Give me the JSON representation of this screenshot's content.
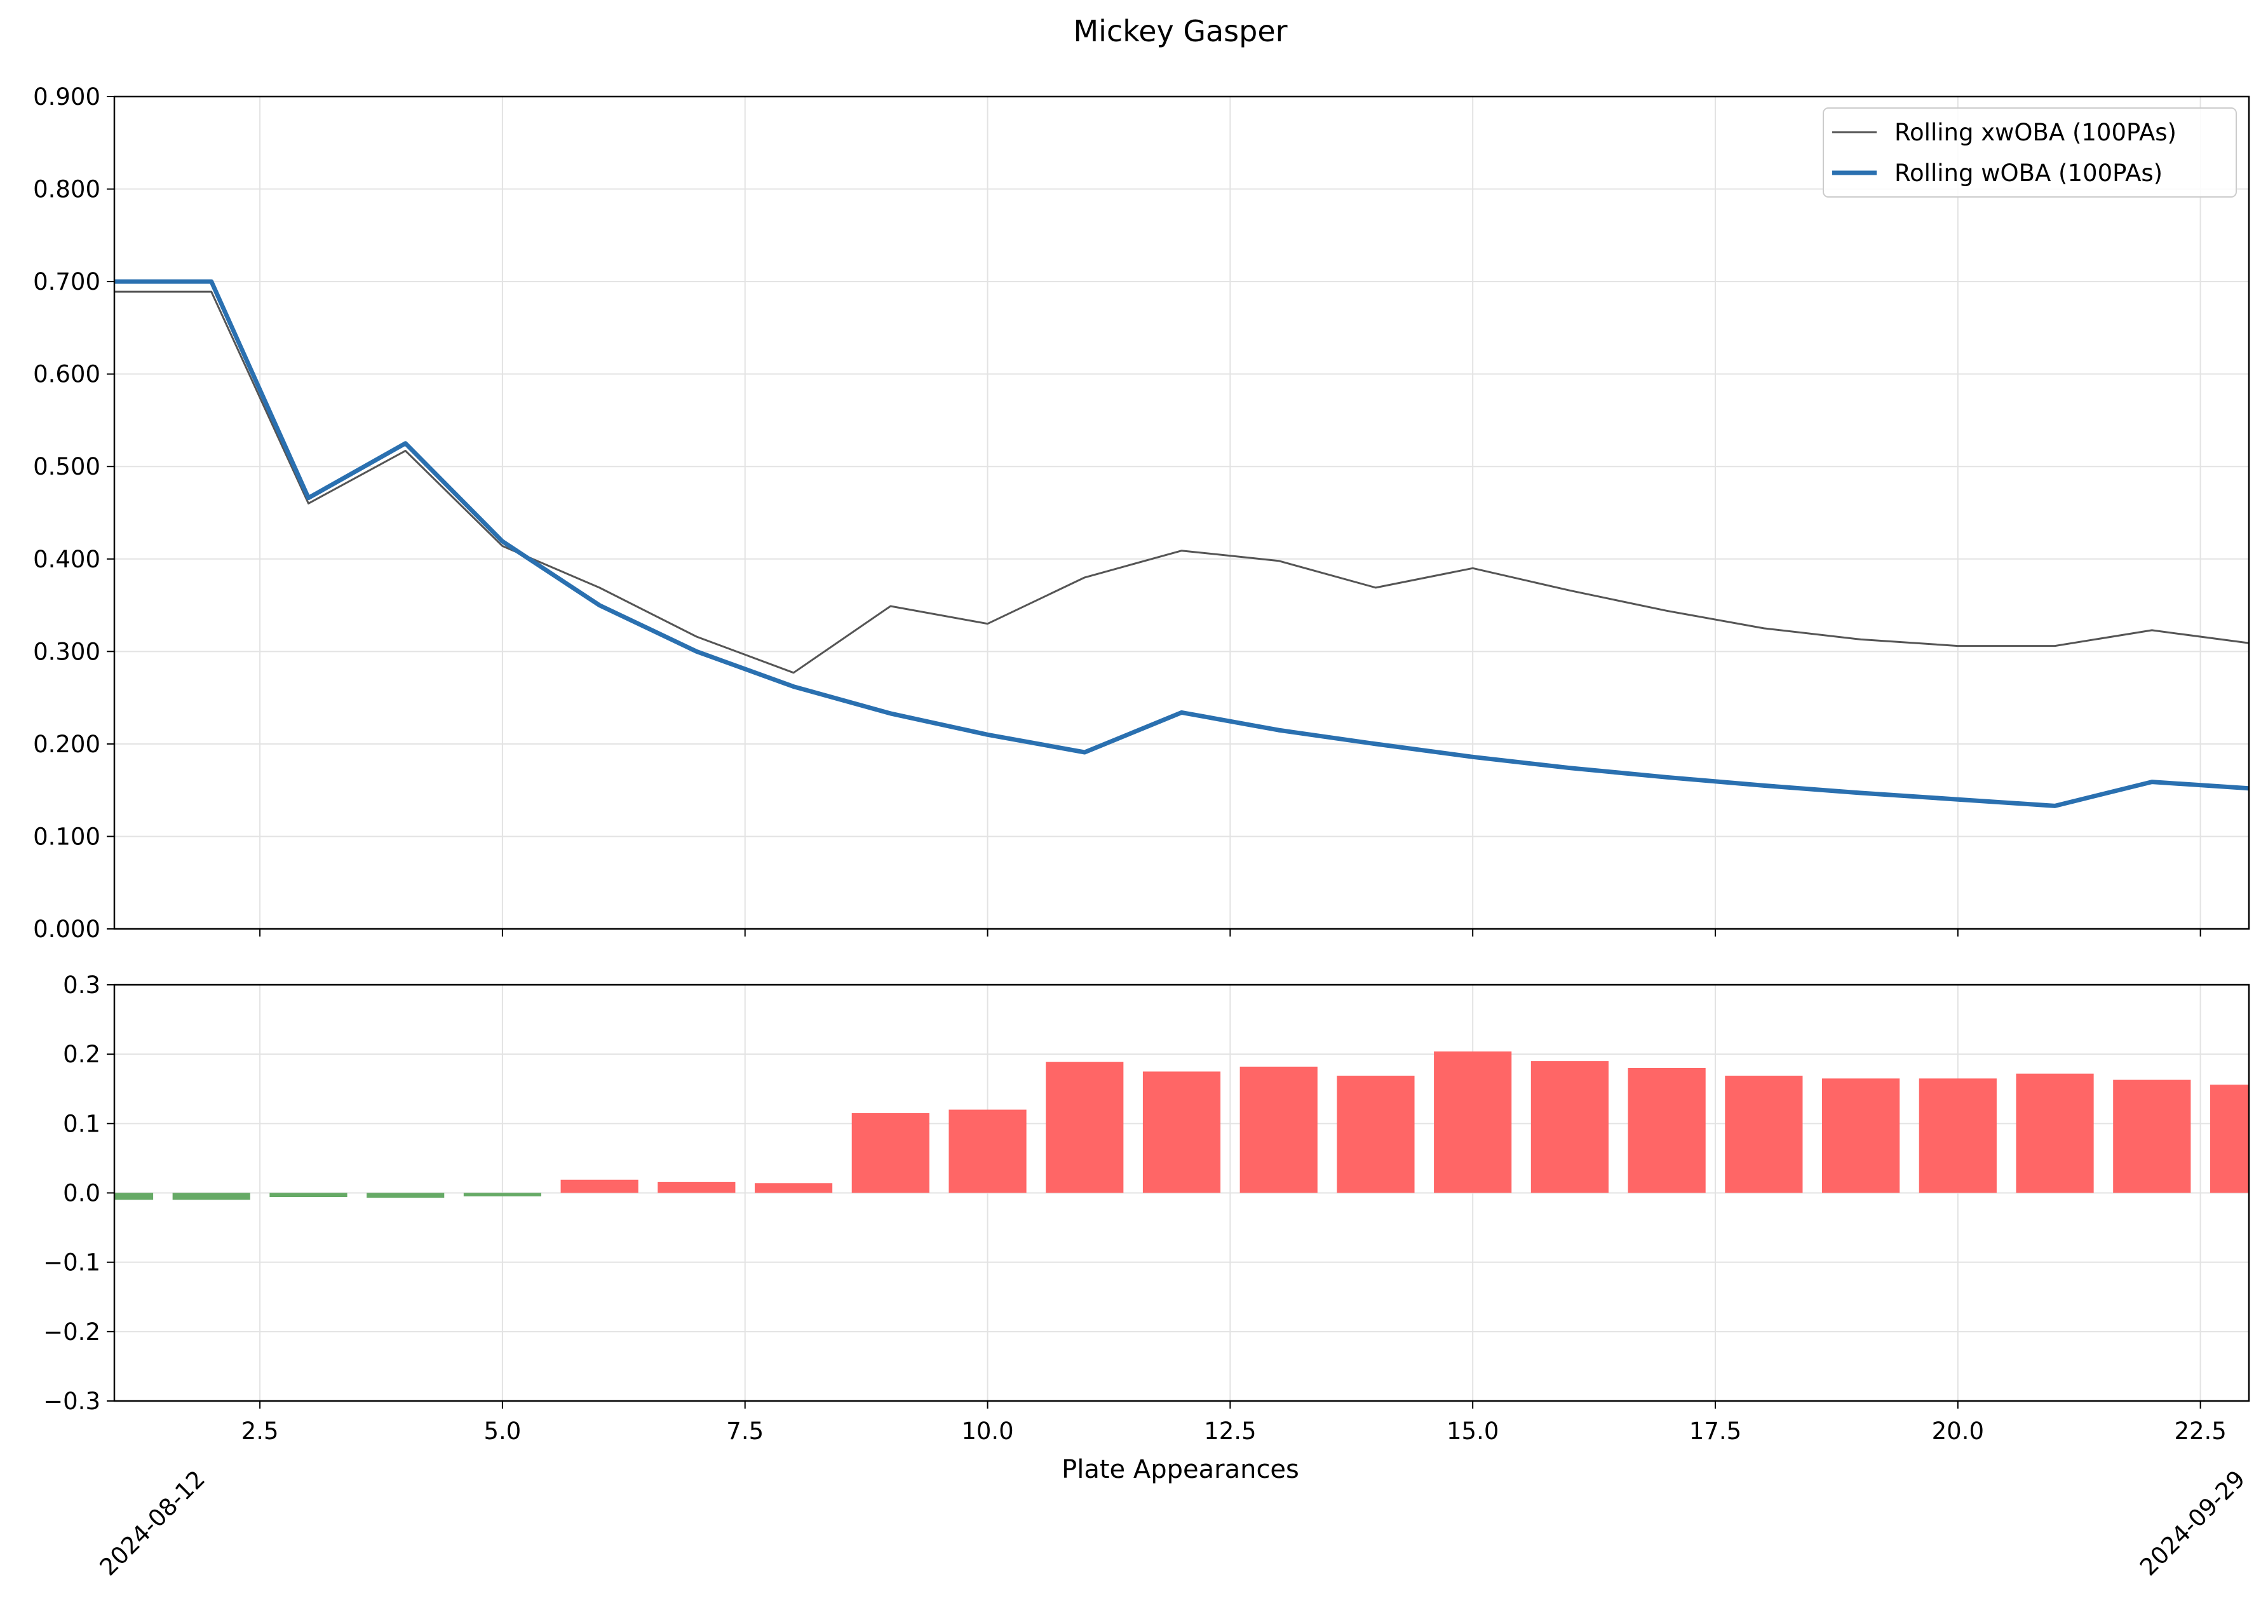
{
  "chart_data": [
    {
      "type": "line",
      "title": "Mickey Gasper",
      "xlabel": "",
      "ylabel": "",
      "xlim": [
        1,
        23
      ],
      "ylim": [
        0,
        0.9
      ],
      "grid": true,
      "legend_position": "top-right",
      "yticks": [
        "0.000",
        "0.100",
        "0.200",
        "0.300",
        "0.400",
        "0.500",
        "0.600",
        "0.700",
        "0.800",
        "0.900"
      ],
      "x": [
        1,
        2,
        3,
        4,
        5,
        6,
        7,
        8,
        9,
        10,
        11,
        12,
        13,
        14,
        15,
        16,
        17,
        18,
        19,
        20,
        21,
        22,
        23
      ],
      "series": [
        {
          "name": "Rolling xwOBA (100PAs)",
          "color": "#555555",
          "values": [
            0.689,
            0.689,
            0.46,
            0.517,
            0.414,
            0.369,
            0.316,
            0.277,
            0.349,
            0.33,
            0.38,
            0.409,
            0.398,
            0.369,
            0.39,
            0.366,
            0.344,
            0.325,
            0.313,
            0.306,
            0.306,
            0.323,
            0.309
          ]
        },
        {
          "name": "Rolling wOBA (100PAs)",
          "color": "#2a70b0",
          "values": [
            0.7,
            0.7,
            0.466,
            0.525,
            0.419,
            0.35,
            0.3,
            0.262,
            0.233,
            0.21,
            0.191,
            0.234,
            0.215,
            0.2,
            0.186,
            0.174,
            0.164,
            0.155,
            0.147,
            0.14,
            0.133,
            0.159,
            0.152
          ]
        }
      ]
    },
    {
      "type": "bar",
      "title": "",
      "xlabel": "Plate Appearances",
      "ylabel": "",
      "xlim": [
        1,
        23
      ],
      "ylim": [
        -0.3,
        0.3
      ],
      "grid": true,
      "xticks": [
        "2.5",
        "5.0",
        "7.5",
        "10.0",
        "12.5",
        "15.0",
        "17.5",
        "20.0",
        "22.5"
      ],
      "yticks": [
        "−0.3",
        "−0.2",
        "−0.1",
        "0.0",
        "0.1",
        "0.2",
        "0.3"
      ],
      "date_labels": [
        "2024-08-12",
        "2024-09-29"
      ],
      "positive_color": "#ff6666",
      "negative_color": "#66aa66",
      "x": [
        1,
        2,
        3,
        4,
        5,
        6,
        7,
        8,
        9,
        10,
        11,
        12,
        13,
        14,
        15,
        16,
        17,
        18,
        19,
        20,
        21,
        22,
        23
      ],
      "values": [
        -0.01,
        -0.01,
        -0.006,
        -0.007,
        -0.005,
        0.019,
        0.016,
        0.014,
        0.115,
        0.12,
        0.189,
        0.175,
        0.182,
        0.169,
        0.204,
        0.19,
        0.18,
        0.169,
        0.165,
        0.165,
        0.172,
        0.163,
        0.156
      ]
    }
  ]
}
